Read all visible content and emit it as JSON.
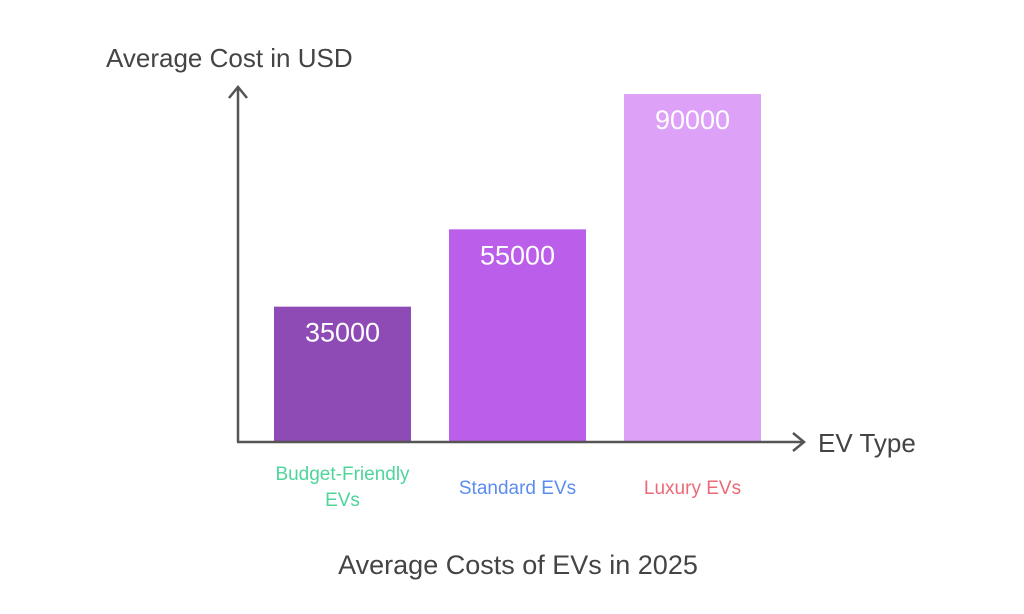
{
  "chart_data": {
    "type": "bar",
    "title": "Average Costs of EVs in 2025",
    "xlabel": "EV Type",
    "ylabel": "Average Cost in USD",
    "categories": [
      "Budget-Friendly EVs",
      "Standard EVs",
      "Luxury EVs"
    ],
    "category_lines": [
      [
        "Budget-Friendly",
        "EVs"
      ],
      [
        "Standard EVs"
      ],
      [
        "Luxury EVs"
      ]
    ],
    "values": [
      35000,
      55000,
      90000
    ],
    "data_labels": [
      "35000",
      "55000",
      "90000"
    ],
    "ylim": [
      0,
      90000
    ],
    "grid": false,
    "legend": "none",
    "bar_colors": [
      "#8e4ab5",
      "#bb5fea",
      "#dda1f8"
    ],
    "category_label_colors": [
      "#4fd49a",
      "#5b8def",
      "#ea6a77"
    ],
    "axis_color": "#555555",
    "text_color": "#444444"
  }
}
